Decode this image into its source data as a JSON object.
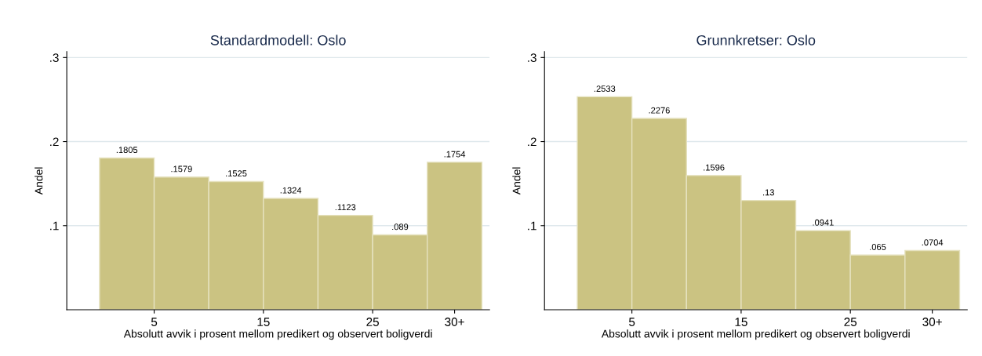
{
  "chart_data": [
    {
      "type": "histogram",
      "title": "Standardmodell: Oslo",
      "xlabel": "Absolutt avvik i prosent mellom predikert og observert boligverdi",
      "ylabel": "Andel",
      "bins": [
        0,
        5,
        10,
        15,
        20,
        25,
        30,
        35
      ],
      "values": [
        0.1805,
        0.1579,
        0.1525,
        0.1324,
        0.1123,
        0.089,
        0.1754
      ],
      "value_labels": [
        ".1805",
        ".1579",
        ".1525",
        ".1324",
        ".1123",
        ".089",
        ".1754"
      ],
      "color": "#cbc382",
      "xlim": [
        -3,
        35.7
      ],
      "xticks": [
        5,
        15,
        25,
        {
          "value": 32.5,
          "label": "30+"
        }
      ],
      "ylim": [
        0,
        0.307
      ],
      "yticks": [
        {
          "value": 0.1,
          "label": ".1"
        },
        {
          "value": 0.2,
          "label": ".2"
        },
        {
          "value": 0.3,
          "label": ".3"
        }
      ],
      "grid": "y"
    },
    {
      "type": "histogram",
      "title": "Grunnkretser: Oslo",
      "xlabel": "Absolutt avvik i prosent mellom predikert og observert boligverdi",
      "ylabel": "Andel",
      "bins": [
        0,
        5,
        10,
        15,
        20,
        25,
        30,
        35
      ],
      "values": [
        0.2533,
        0.2276,
        0.1596,
        0.13,
        0.0941,
        0.065,
        0.0704
      ],
      "value_labels": [
        ".2533",
        ".2276",
        ".1596",
        ".13",
        ".0941",
        ".065",
        ".0704"
      ],
      "color": "#cbc382",
      "xlim": [
        -3,
        35.7
      ],
      "xticks": [
        5,
        15,
        25,
        {
          "value": 32.5,
          "label": "30+"
        }
      ],
      "ylim": [
        0,
        0.307
      ],
      "yticks": [
        {
          "value": 0.1,
          "label": ".1"
        },
        {
          "value": 0.2,
          "label": ".2"
        },
        {
          "value": 0.3,
          "label": ".3"
        }
      ],
      "grid": "y"
    }
  ]
}
